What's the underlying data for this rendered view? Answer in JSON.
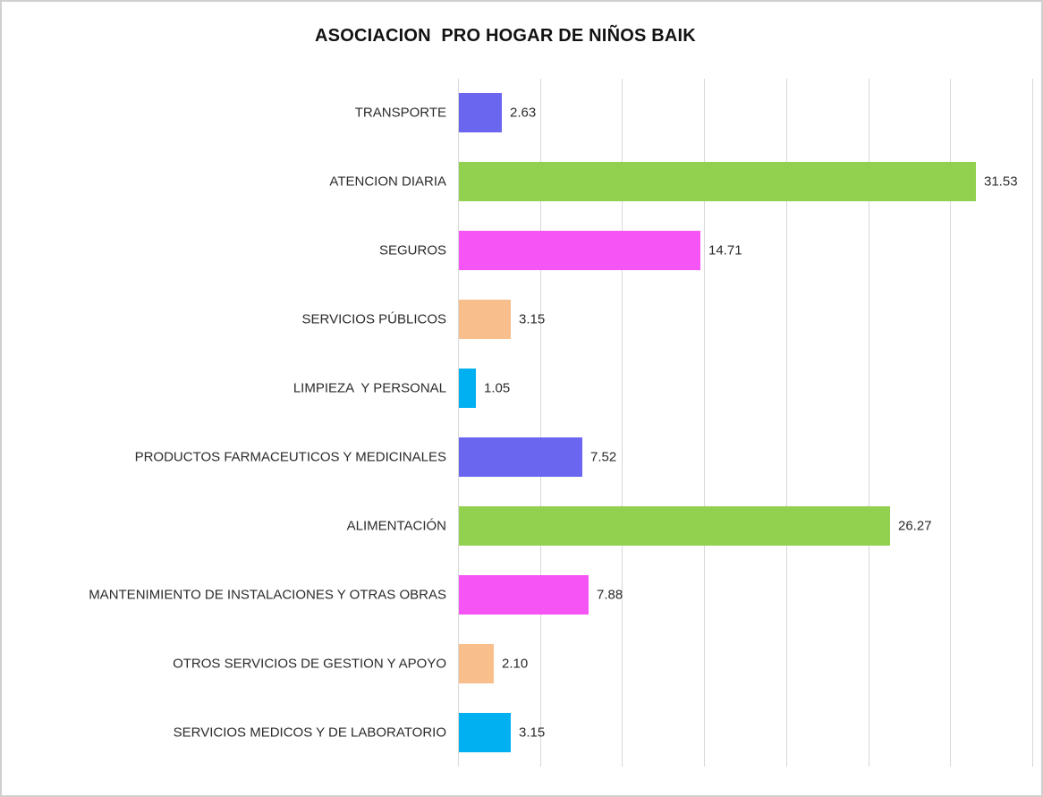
{
  "window": {
    "background": "#ffffff",
    "border_color": "#d2d0ce"
  },
  "chart_data": {
    "type": "bar",
    "orientation": "horizontal",
    "title": "ASOCIACION  PRO HOGAR DE NIÑOS BAIK",
    "categories": [
      "TRANSPORTE",
      "ATENCION DIARIA",
      "SEGUROS",
      "SERVICIOS PÚBLICOS",
      "LIMPIEZA  Y PERSONAL",
      "PRODUCTOS FARMACEUTICOS Y MEDICINALES",
      "ALIMENTACIÓN",
      "MANTENIMIENTO DE INSTALACIONES Y OTRAS OBRAS",
      "OTROS SERVICIOS DE GESTION Y APOYO",
      "SERVICIOS MEDICOS Y DE LABORATORIO"
    ],
    "values": [
      2.63,
      31.53,
      14.71,
      3.15,
      1.05,
      7.52,
      26.27,
      7.88,
      2.1,
      3.15
    ],
    "value_labels": [
      "2.63",
      "31.53",
      "14.71",
      "3.15",
      "1.05",
      "7.52",
      "26.27",
      "7.88",
      "2.10",
      "3.15"
    ],
    "bar_colors": [
      "#6a66f0",
      "#92d050",
      "#f655f6",
      "#f8be8c",
      "#00b0f0",
      "#6a66f0",
      "#92d050",
      "#f655f6",
      "#f8be8c",
      "#00b0f0"
    ],
    "xlabel": "",
    "ylabel": "",
    "xlim": [
      0,
      35
    ],
    "grid_interval": 5,
    "grid": true,
    "gridline_color": "#d8d8d8",
    "legend_position": "none",
    "data_labels": "outside-end"
  }
}
